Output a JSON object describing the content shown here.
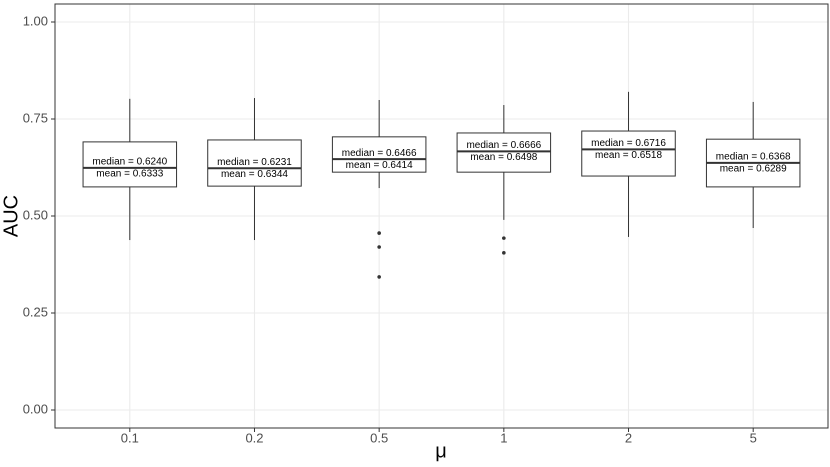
{
  "chart_data": {
    "type": "box",
    "x_label": "μ",
    "y_label": "AUC",
    "categories": [
      "0.1",
      "0.2",
      "0.5",
      "1",
      "2",
      "5"
    ],
    "boxes": [
      {
        "whisker_low": 0.438,
        "q1": 0.575,
        "median": 0.624,
        "q3": 0.691,
        "whisker_high": 0.802,
        "outliers": [],
        "median_label": "median = 0.6240",
        "mean_label": "mean = 0.6333"
      },
      {
        "whisker_low": 0.438,
        "q1": 0.577,
        "median": 0.6231,
        "q3": 0.696,
        "whisker_high": 0.804,
        "outliers": [],
        "median_label": "median = 0.6231",
        "mean_label": "mean = 0.6344"
      },
      {
        "whisker_low": 0.572,
        "q1": 0.613,
        "median": 0.6466,
        "q3": 0.704,
        "whisker_high": 0.799,
        "outliers": [
          0.456,
          0.42,
          0.343
        ],
        "median_label": "median = 0.6466",
        "mean_label": "mean = 0.6414"
      },
      {
        "whisker_low": 0.49,
        "q1": 0.613,
        "median": 0.6666,
        "q3": 0.714,
        "whisker_high": 0.786,
        "outliers": [
          0.443,
          0.405
        ],
        "median_label": "median = 0.6666",
        "mean_label": "mean = 0.6498"
      },
      {
        "whisker_low": 0.446,
        "q1": 0.603,
        "median": 0.6716,
        "q3": 0.719,
        "whisker_high": 0.82,
        "outliers": [],
        "median_label": "median = 0.6716",
        "mean_label": "mean = 0.6518"
      },
      {
        "whisker_low": 0.469,
        "q1": 0.575,
        "median": 0.6368,
        "q3": 0.698,
        "whisker_high": 0.794,
        "outliers": [],
        "median_label": "median = 0.6368",
        "mean_label": "mean = 0.6289"
      }
    ],
    "ylim": [
      -0.0464,
      1.0464
    ],
    "yticks": [
      {
        "value": 0,
        "label": "0.00"
      },
      {
        "value": 0.25,
        "label": "0.25"
      },
      {
        "value": 0.5,
        "label": "0.50"
      },
      {
        "value": 0.75,
        "label": "0.75"
      },
      {
        "value": 1,
        "label": "1.00"
      }
    ],
    "grid": true,
    "color": "#333333",
    "fill": "#ffffff"
  }
}
